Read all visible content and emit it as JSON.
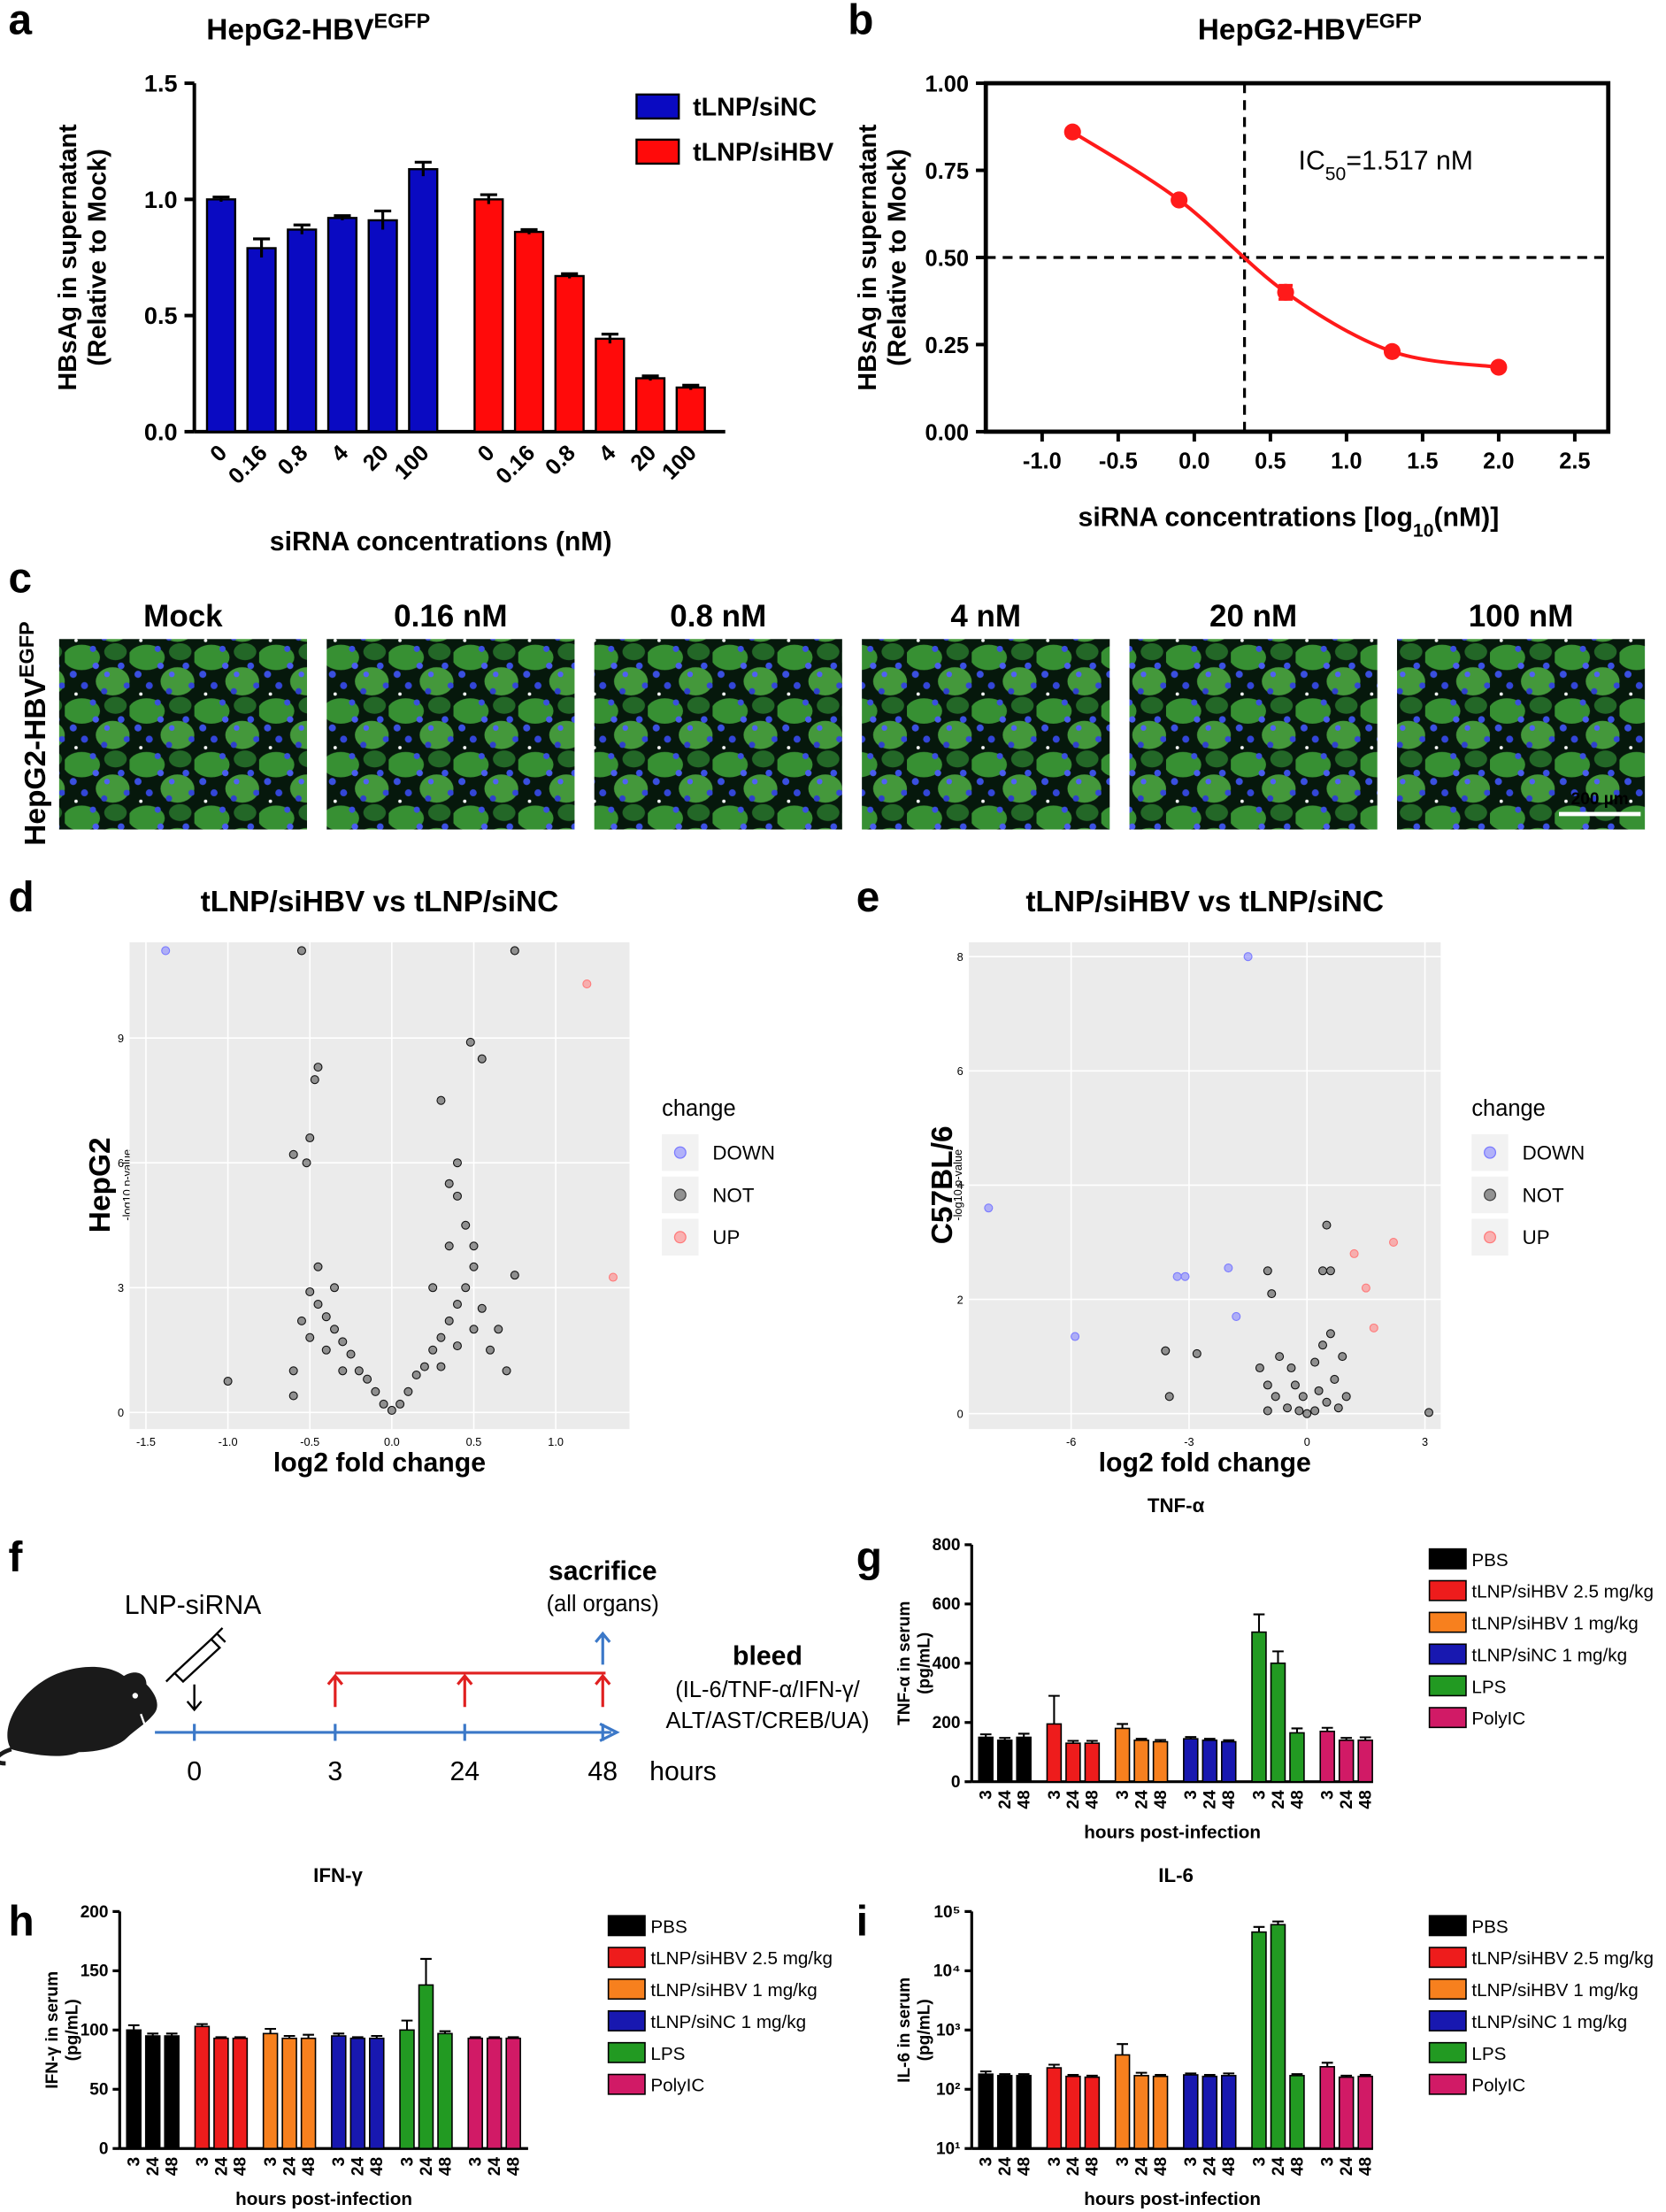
{
  "chart_data": [
    {
      "type": "bar",
      "panel": "a",
      "title": "HepG2-HBV",
      "title_sup": "EGFP",
      "categories": [
        "0",
        "0.16",
        "0.8",
        "4",
        "20",
        "100"
      ],
      "series": [
        {
          "name": "tLNP/siNC",
          "color": "#0a0ac2",
          "values": [
            1.0,
            0.79,
            0.87,
            0.92,
            0.91,
            1.13
          ],
          "errors": [
            0.01,
            0.04,
            0.02,
            0.01,
            0.04,
            0.03
          ]
        },
        {
          "name": "tLNP/siHBV",
          "color": "#ff0a0a",
          "values": [
            1.0,
            0.86,
            0.67,
            0.4,
            0.23,
            0.19
          ],
          "errors": [
            0.02,
            0.01,
            0.01,
            0.02,
            0.01,
            0.01
          ]
        }
      ],
      "ylim": [
        0,
        1.5
      ],
      "yticks": [
        {
          "value": 0,
          "label": "0.0"
        },
        0.5,
        {
          "value": 1,
          "label": "1.0"
        },
        1.5
      ],
      "ylabel": [
        "HBsAg in supernatant",
        "(Relative to Mock)"
      ],
      "xlabel": "siRNA concentrations (nM)"
    },
    {
      "type": "line",
      "panel": "b",
      "title": "HepG2-HBV",
      "title_sup": "EGFP",
      "color": "#ff1a1a",
      "x": [
        -0.8,
        -0.1,
        0.6,
        1.3,
        2.0
      ],
      "values": [
        0.86,
        0.665,
        0.4,
        0.23,
        0.185
      ],
      "errors": [
        0.01,
        0.01,
        0.02,
        0.01,
        0.01
      ],
      "xlim": [
        -1.37,
        2.72
      ],
      "xticks": [
        {
          "value": -1,
          "label": "-1.0"
        },
        -0.5,
        {
          "value": 0,
          "label": "0.0"
        },
        0.5,
        {
          "value": 1,
          "label": "1.0"
        },
        1.5,
        {
          "value": 2,
          "label": "2.0"
        },
        2.5
      ],
      "ylim": [
        0,
        1
      ],
      "yticks": [
        {
          "value": 0,
          "label": "0.00"
        },
        0.25,
        {
          "value": 0.5,
          "label": "0.50"
        },
        0.75,
        {
          "value": 1,
          "label": "1.00"
        }
      ],
      "reference_lines": {
        "y": 0.5,
        "x": 0.33
      },
      "annotation": "IC",
      "annotation_sub": "50",
      "annotation_rest": "=1.517 nM",
      "ylabel": [
        "HBsAg in supernatant",
        "(Relative to Mock)"
      ],
      "xlabel": "siRNA concentrations [log",
      "xlabel_sub": "10",
      "xlabel_rest": "(nM)]"
    },
    {
      "type": "scatter",
      "panel": "d",
      "title": "tLNP/siHBV vs tLNP/siNC",
      "row_label": "HepG2",
      "xlabel": "log2 fold change",
      "ylabel": "-log10 p-value",
      "legend_title": "change",
      "xlim": [
        -1.6,
        1.45
      ],
      "xticks": [
        -1.5,
        {
          "value": -1,
          "label": "-1.0"
        },
        -0.5,
        {
          "value": 0,
          "label": "0.0"
        },
        0.5,
        {
          "value": 1,
          "label": "1.0"
        }
      ],
      "ylim": [
        -0.4,
        11.3
      ],
      "yticks": [
        0,
        3,
        6,
        9
      ],
      "series": [
        {
          "name": "DOWN",
          "color": "#7b7bff",
          "x": [
            -1.38
          ],
          "values": [
            11.1
          ]
        },
        {
          "name": "NOT",
          "color": "#444444",
          "x": [
            -0.55,
            0.75,
            0.48,
            0.55,
            -0.45,
            -0.47,
            0.3,
            -0.6,
            -0.5,
            -0.52,
            -1.0,
            -0.6,
            0.75,
            0.4,
            0.35,
            0.4,
            -0.05,
            -0.1,
            -0.15,
            -0.2,
            -0.25,
            -0.3,
            -0.35,
            -0.4,
            -0.45,
            -0.5,
            -0.3,
            -0.4,
            -0.5,
            -0.55,
            -0.6,
            0.05,
            0.1,
            0.15,
            0.2,
            0.25,
            0.3,
            0.35,
            0.4,
            0.45,
            0.5,
            0.3,
            0.4,
            0.5,
            0.55,
            0.6,
            0.65,
            0.7,
            0.5,
            0.45,
            0.35,
            0.25,
            -0.35,
            -0.45,
            0.0
          ],
          "values": [
            11.1,
            11.1,
            8.9,
            8.5,
            8.3,
            8.0,
            7.5,
            6.2,
            6.6,
            6.0,
            0.75,
            0.4,
            3.3,
            6.0,
            5.5,
            5.2,
            0.2,
            0.5,
            0.8,
            1.0,
            1.4,
            1.7,
            2.0,
            2.3,
            2.6,
            2.9,
            1.0,
            1.5,
            1.8,
            2.2,
            1.0,
            0.2,
            0.5,
            0.9,
            1.1,
            1.5,
            1.8,
            2.2,
            2.6,
            3.0,
            3.5,
            1.1,
            1.6,
            2.0,
            2.5,
            1.5,
            2.0,
            1.0,
            4.0,
            4.5,
            4.0,
            3.0,
            3.0,
            3.5,
            0.05
          ]
        },
        {
          "name": "UP",
          "color": "#ff7b7b",
          "x": [
            1.19,
            1.35
          ],
          "values": [
            10.3,
            3.25
          ]
        }
      ]
    },
    {
      "type": "scatter",
      "panel": "e",
      "title": "tLNP/siHBV vs tLNP/siNC",
      "row_label": "C57BL/6",
      "xlabel": "log2 fold change",
      "ylabel": "-log10 p-value",
      "legend_title": "change",
      "xlim": [
        -8.6,
        3.4
      ],
      "xticks": [
        -6,
        -3,
        0,
        3
      ],
      "ylim": [
        -0.27,
        8.25
      ],
      "yticks": [
        0,
        2,
        4,
        6,
        8
      ],
      "series": [
        {
          "name": "DOWN",
          "color": "#7b7bff",
          "x": [
            -1.5,
            -8.1,
            -5.9,
            -3.3,
            -3.1,
            -2.0,
            -1.8
          ],
          "values": [
            8.0,
            3.6,
            1.35,
            2.4,
            2.4,
            2.55,
            1.7
          ]
        },
        {
          "name": "NOT",
          "color": "#444444",
          "x": [
            0.5,
            0.6,
            0.4,
            -1.0,
            -0.9,
            -3.6,
            -2.8,
            -3.5,
            3.1,
            -1.2,
            -1.0,
            -0.8,
            -0.5,
            -0.2,
            0.2,
            0.5,
            0.7,
            0.9,
            0.3,
            -0.3,
            0.4,
            0.6,
            -0.7,
            0.8,
            -1.0,
            1.0,
            -0.4,
            0.2,
            -0.1,
            0.0
          ],
          "values": [
            3.3,
            2.5,
            2.5,
            2.5,
            2.1,
            1.1,
            1.05,
            0.3,
            0.02,
            0.8,
            0.5,
            0.3,
            0.1,
            0.05,
            0.05,
            0.2,
            0.6,
            1.0,
            0.4,
            0.5,
            1.2,
            1.4,
            1.0,
            0.1,
            0.05,
            0.3,
            0.8,
            0.9,
            0.3,
            0.0
          ]
        },
        {
          "name": "UP",
          "color": "#ff7b7b",
          "x": [
            2.2,
            1.2,
            1.5,
            1.7
          ],
          "values": [
            3.0,
            2.8,
            2.2,
            1.5
          ]
        }
      ]
    },
    {
      "type": "grouped_bar",
      "panel": "g",
      "title": "TNF-α",
      "categories": [
        "3",
        "24",
        "48"
      ],
      "ylim": [
        0,
        800
      ],
      "yticks": [
        0,
        200,
        400,
        600,
        800
      ],
      "ylabel": [
        "TNF-α in serum",
        "(pg/mL)"
      ],
      "xlabel": "hours post-infection",
      "series": [
        {
          "name": "PBS",
          "color": "#000000",
          "values": [
            150,
            140,
            150
          ],
          "errors": [
            10,
            8,
            12
          ]
        },
        {
          "name": "tLNP/siHBV 2.5 mg/kg",
          "color": "#ee1c1c",
          "values": [
            195,
            130,
            130
          ],
          "errors": [
            95,
            8,
            8
          ]
        },
        {
          "name": "tLNP/siHBV 1 mg/kg",
          "color": "#f7801e",
          "values": [
            180,
            140,
            135
          ],
          "errors": [
            15,
            5,
            6
          ]
        },
        {
          "name": "tLNP/siNC 1 mg/kg",
          "color": "#1818b0",
          "values": [
            145,
            140,
            135
          ],
          "errors": [
            6,
            5,
            5
          ]
        },
        {
          "name": "LPS",
          "color": "#229a22",
          "values": [
            505,
            400,
            165
          ],
          "errors": [
            60,
            40,
            15
          ]
        },
        {
          "name": "PolyIC",
          "color": "#d11a66",
          "values": [
            170,
            140,
            140
          ],
          "errors": [
            12,
            8,
            10
          ]
        }
      ]
    },
    {
      "type": "grouped_bar",
      "panel": "h",
      "title": "IFN-γ",
      "categories": [
        "3",
        "24",
        "48"
      ],
      "ylim": [
        0,
        200
      ],
      "yticks": [
        0,
        50,
        100,
        150,
        200
      ],
      "ylabel": [
        "IFN-γ in serum",
        "(pg/mL)"
      ],
      "xlabel": "hours post-infection",
      "series": [
        {
          "name": "PBS",
          "color": "#000000",
          "values": [
            100,
            95,
            95
          ],
          "errors": [
            4,
            2,
            2
          ]
        },
        {
          "name": "tLNP/siHBV 2.5 mg/kg",
          "color": "#ee1c1c",
          "values": [
            103,
            93,
            93
          ],
          "errors": [
            2,
            1,
            1
          ]
        },
        {
          "name": "tLNP/siHBV 1 mg/kg",
          "color": "#f7801e",
          "values": [
            97,
            93,
            93
          ],
          "errors": [
            4,
            2,
            3
          ]
        },
        {
          "name": "tLNP/siNC 1 mg/kg",
          "color": "#1818b0",
          "values": [
            95,
            93,
            93
          ],
          "errors": [
            2,
            1,
            2
          ]
        },
        {
          "name": "LPS",
          "color": "#229a22",
          "values": [
            100,
            138,
            97
          ],
          "errors": [
            8,
            22,
            2
          ]
        },
        {
          "name": "PolyIC",
          "color": "#d11a66",
          "values": [
            93,
            93,
            93
          ],
          "errors": [
            1,
            1,
            1
          ]
        }
      ]
    },
    {
      "type": "grouped_bar",
      "panel": "i",
      "title": "IL-6",
      "categories": [
        "3",
        "24",
        "48"
      ],
      "log": true,
      "ylim": [
        10,
        100000
      ],
      "yticks": [
        {
          "value": 10,
          "label": "10¹"
        },
        {
          "value": 100,
          "label": "10²"
        },
        {
          "value": 1000,
          "label": "10³"
        },
        {
          "value": 10000,
          "label": "10⁴"
        },
        {
          "value": 100000,
          "label": "10⁵"
        }
      ],
      "ylabel": [
        "IL-6 in serum",
        "(pg/mL)"
      ],
      "xlabel": "hours post-infection",
      "series": [
        {
          "name": "PBS",
          "color": "#000000",
          "values": [
            180,
            170,
            170
          ],
          "errors": [
            20,
            10,
            10
          ]
        },
        {
          "name": "tLNP/siHBV 2.5 mg/kg",
          "color": "#ee1c1c",
          "values": [
            230,
            165,
            160
          ],
          "errors": [
            30,
            10,
            10
          ]
        },
        {
          "name": "tLNP/siHBV 1 mg/kg",
          "color": "#f7801e",
          "values": [
            380,
            170,
            165
          ],
          "errors": [
            200,
            20,
            10
          ]
        },
        {
          "name": "tLNP/siNC 1 mg/kg",
          "color": "#1818b0",
          "values": [
            175,
            165,
            170
          ],
          "errors": [
            10,
            10,
            15
          ]
        },
        {
          "name": "LPS",
          "color": "#229a22",
          "values": [
            45000,
            60000,
            170
          ],
          "errors": [
            10000,
            8000,
            10
          ]
        },
        {
          "name": "PolyIC",
          "color": "#d11a66",
          "values": [
            240,
            160,
            165
          ],
          "errors": [
            40,
            10,
            10
          ]
        }
      ]
    }
  ],
  "micrographs": {
    "panel": "c",
    "row_label": "HepG2-HBV",
    "row_label_sup": "EGFP",
    "columns": [
      "Mock",
      "0.16 nM",
      "0.8 nM",
      "4 nM",
      "20 nM",
      "100 nM"
    ],
    "scale_bar": "200 µm"
  },
  "timeline": {
    "panel": "f",
    "drug": "LNP-siRNA",
    "sacrifice": "sacrifice",
    "sacrifice_note": "(all organs)",
    "bleed": "bleed",
    "bleed_note": [
      "(IL-6/TNF-α/IFN-γ/",
      "ALT/AST/CREB/UA)"
    ],
    "timepoints": [
      "0",
      "3",
      "24",
      "48"
    ],
    "unit": "hours"
  }
}
